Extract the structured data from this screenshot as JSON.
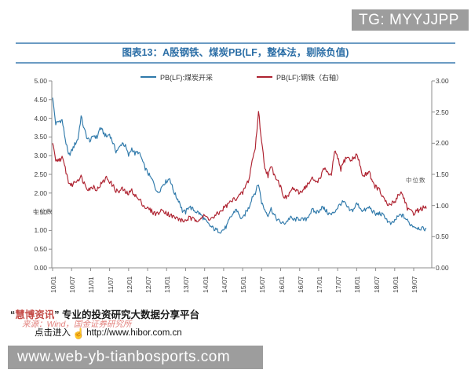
{
  "badge_top": {
    "text": "TG: MYYJJPP",
    "bg": "#9d9d9d"
  },
  "figure": {
    "title": "图表13：A股钢铁、煤炭PB(LF，整体法，剔除负值)",
    "title_color": "#2b6ea6"
  },
  "watermark": "中位数",
  "chart_data": {
    "type": "line",
    "title": "图表13：A股钢铁、煤炭PB(LF，整体法，剔除负值)",
    "legend_position": "top-center",
    "grid": false,
    "legend": [
      {
        "name": "PB(LF):煤炭开采",
        "color": "#2f79aa",
        "axis": "left"
      },
      {
        "name": "PB(LF):钢铁（右轴）",
        "color": "#ae2230",
        "axis": "right"
      }
    ],
    "x_tick_labels": [
      "10/01",
      "10/07",
      "11/01",
      "11/07",
      "12/01",
      "12/07",
      "13/01",
      "13/07",
      "14/01",
      "14/07",
      "15/01",
      "15/07",
      "16/01",
      "16/07",
      "17/01",
      "17/07",
      "18/01",
      "18/07",
      "19/01",
      "19/07"
    ],
    "x_frequency": "monthly",
    "x_start": "10/01",
    "x_end": "19/11",
    "left_ylim": [
      0,
      5
    ],
    "right_ylim": [
      0,
      3
    ],
    "left_yticks": [
      "0.00",
      "0.50",
      "1.00",
      "1.50",
      "2.00",
      "2.50",
      "3.00",
      "3.50",
      "4.00",
      "4.50",
      "5.00"
    ],
    "right_yticks": [
      "0.00",
      "0.50",
      "1.00",
      "1.50",
      "2.00",
      "2.50",
      "3.00"
    ],
    "series": [
      {
        "name": "PB(LF):煤炭开采",
        "axis": "left",
        "color": "#2f79aa",
        "values": [
          4.55,
          3.85,
          3.92,
          3.95,
          3.45,
          3.0,
          3.12,
          3.3,
          3.45,
          4.05,
          3.7,
          3.45,
          3.4,
          3.55,
          3.48,
          3.75,
          3.62,
          3.5,
          3.58,
          3.35,
          3.12,
          3.2,
          3.35,
          3.25,
          3.0,
          3.2,
          3.05,
          3.1,
          2.95,
          2.7,
          2.55,
          2.4,
          2.28,
          2.0,
          2.1,
          2.25,
          2.32,
          2.4,
          2.1,
          1.9,
          1.78,
          1.52,
          1.48,
          1.65,
          1.58,
          1.52,
          1.48,
          1.4,
          1.28,
          1.18,
          1.1,
          1.04,
          1.0,
          0.98,
          1.02,
          1.12,
          1.32,
          1.45,
          1.58,
          1.38,
          1.3,
          1.48,
          1.62,
          1.9,
          2.02,
          2.25,
          1.75,
          1.55,
          1.42,
          1.58,
          1.4,
          1.28,
          1.22,
          1.18,
          1.25,
          1.35,
          1.28,
          1.3,
          1.32,
          1.28,
          1.3,
          1.42,
          1.55,
          1.48,
          1.52,
          1.62,
          1.56,
          1.46,
          1.42,
          1.5,
          1.62,
          1.72,
          1.76,
          1.62,
          1.52,
          1.56,
          1.72,
          1.62,
          1.52,
          1.56,
          1.62,
          1.52,
          1.42,
          1.46,
          1.42,
          1.36,
          1.22,
          1.16,
          1.26,
          1.36,
          1.42,
          1.36,
          1.26,
          1.16,
          1.12,
          1.08,
          1.06,
          1.04,
          1.05
        ]
      },
      {
        "name": "PB(LF):钢铁（右轴）",
        "axis": "right",
        "color": "#ae2230",
        "values": [
          2.0,
          1.7,
          1.74,
          1.76,
          1.6,
          1.38,
          1.32,
          1.38,
          1.42,
          1.46,
          1.36,
          1.28,
          1.27,
          1.31,
          1.25,
          1.33,
          1.38,
          1.45,
          1.39,
          1.32,
          1.24,
          1.22,
          1.27,
          1.21,
          1.19,
          1.24,
          1.17,
          1.1,
          1.06,
          0.98,
          0.95,
          0.92,
          0.88,
          0.87,
          0.9,
          0.93,
          0.88,
          0.85,
          0.82,
          0.8,
          0.78,
          0.75,
          0.76,
          0.8,
          0.78,
          0.77,
          0.78,
          0.81,
          0.83,
          0.8,
          0.79,
          0.81,
          0.86,
          0.9,
          0.96,
          1.0,
          1.05,
          1.09,
          1.12,
          1.16,
          1.2,
          1.32,
          1.42,
          1.72,
          1.92,
          2.52,
          2.02,
          1.62,
          1.48,
          1.62,
          1.5,
          1.42,
          1.3,
          1.15,
          1.12,
          1.22,
          1.28,
          1.22,
          1.2,
          1.26,
          1.31,
          1.36,
          1.43,
          1.38,
          1.41,
          1.51,
          1.61,
          1.51,
          1.46,
          1.88,
          1.76,
          1.58,
          1.71,
          1.79,
          1.72,
          1.76,
          1.82,
          1.66,
          1.46,
          1.51,
          1.56,
          1.36,
          1.3,
          1.26,
          1.16,
          1.06,
          1.0,
          1.03,
          1.06,
          1.16,
          1.21,
          1.11,
          0.96,
          0.9,
          0.88,
          0.91,
          0.94,
          0.96,
          0.95
        ]
      }
    ]
  },
  "footer": {
    "quote_open": "“",
    "brand": "慧博资讯",
    "quote_close": "”",
    "tagline": " 专业的投资研究大数据分享平台",
    "source": "来源：Wind，国金证券研究所",
    "click_prefix": "点击进入",
    "url": "http://www.hibor.com.cn"
  },
  "bottom_bar": {
    "text": "www.web-yb-tianbosports.com"
  }
}
